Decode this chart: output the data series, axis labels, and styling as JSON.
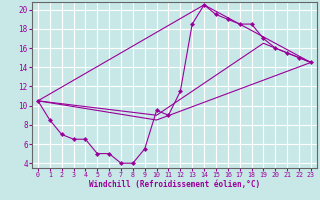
{
  "xlabel": "Windchill (Refroidissement éolien,°C)",
  "bg_color": "#c8e8e8",
  "line_color": "#990099",
  "grid_color": "#ffffff",
  "xlim": [
    -0.5,
    23.5
  ],
  "ylim": [
    3.5,
    20.8
  ],
  "yticks": [
    4,
    6,
    8,
    10,
    12,
    14,
    16,
    18,
    20
  ],
  "xticks": [
    0,
    1,
    2,
    3,
    4,
    5,
    6,
    7,
    8,
    9,
    10,
    11,
    12,
    13,
    14,
    15,
    16,
    17,
    18,
    19,
    20,
    21,
    22,
    23
  ],
  "main_line": {
    "x": [
      0,
      1,
      2,
      3,
      4,
      5,
      6,
      7,
      8,
      9,
      10,
      11,
      12,
      13,
      14,
      15,
      16,
      17,
      18,
      19,
      20,
      21,
      22,
      23
    ],
    "y": [
      10.5,
      8.5,
      7.0,
      6.5,
      6.5,
      5.0,
      5.0,
      4.0,
      4.0,
      5.5,
      9.5,
      9.0,
      11.5,
      18.5,
      20.5,
      19.5,
      19.0,
      18.5,
      18.5,
      17.0,
      16.0,
      15.5,
      15.0,
      14.5
    ]
  },
  "straight_lines": [
    {
      "x": [
        0,
        14,
        23
      ],
      "y": [
        10.5,
        20.5,
        14.5
      ]
    },
    {
      "x": [
        0,
        10,
        23
      ],
      "y": [
        10.5,
        8.5,
        14.5
      ]
    },
    {
      "x": [
        0,
        10,
        19,
        23
      ],
      "y": [
        10.5,
        9.0,
        16.5,
        14.5
      ]
    }
  ]
}
